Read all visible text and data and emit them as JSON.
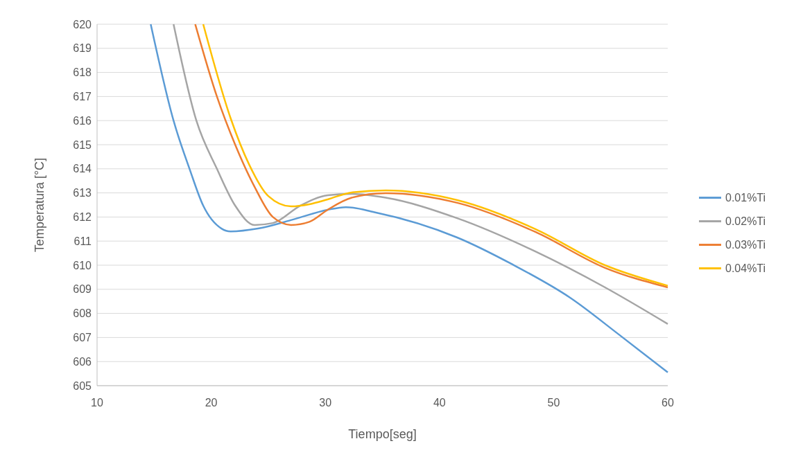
{
  "chart_data": {
    "type": "line",
    "xlabel": "Tiempo[seg]",
    "ylabel": "Temperatura [°C]",
    "xlim": [
      10,
      60
    ],
    "xticks": [
      10,
      20,
      30,
      40,
      50,
      60
    ],
    "ylim": [
      605,
      620
    ],
    "yticks": [
      605,
      606,
      607,
      608,
      609,
      610,
      611,
      612,
      613,
      614,
      615,
      616,
      617,
      618,
      619,
      620
    ],
    "grid": "y",
    "legend": "right",
    "marker": "none",
    "line_style": "solid",
    "series": [
      {
        "name": "0.01%Ti",
        "color": "#5b9bd5",
        "x": [
          14.7,
          16.7,
          18.1,
          19.3,
          20.9,
          21.7,
          24.1,
          27.2,
          30.2,
          31.8,
          34.3,
          41.55,
          46.4,
          51.45,
          55.7,
          60
        ],
        "values": [
          620,
          616.0,
          614.0,
          612.47,
          611.52,
          611.4,
          611.52,
          611.9,
          612.3,
          612.41,
          612.2,
          611.15,
          610.03,
          608.65,
          607.13,
          605.55
        ]
      },
      {
        "name": "0.02%Ti",
        "color": "#a5a5a5",
        "x": [
          16.7,
          18.7,
          20.5,
          22.1,
          23.8,
          25.4,
          27.8,
          30.2,
          32.3,
          35.3,
          41.55,
          48.4,
          54.5,
          60
        ],
        "values": [
          620,
          616.0,
          614.0,
          612.47,
          611.67,
          611.75,
          612.47,
          612.9,
          612.96,
          612.8,
          611.95,
          610.57,
          609.08,
          607.56
        ]
      },
      {
        "name": "0.03%Ti",
        "color": "#ed7d31",
        "x": [
          18.6,
          20.5,
          22.1,
          23.8,
          25.4,
          27.0,
          28.6,
          30.2,
          32.3,
          35.3,
          41.55,
          48.4,
          54.5,
          60
        ],
        "values": [
          620,
          617.0,
          615.0,
          613.25,
          612.0,
          611.67,
          611.8,
          612.3,
          612.8,
          612.99,
          612.59,
          611.38,
          609.89,
          609.08
        ]
      },
      {
        "name": "0.04%Ti",
        "color": "#ffc000",
        "x": [
          19.3,
          21.7,
          23.3,
          25.0,
          27.0,
          28.6,
          30.2,
          32.3,
          35.3,
          41.55,
          48.4,
          54.5,
          60
        ],
        "values": [
          620,
          616.1,
          614.2,
          612.87,
          612.44,
          612.53,
          612.73,
          613.02,
          613.1,
          612.7,
          611.5,
          610.0,
          609.15
        ]
      }
    ]
  }
}
